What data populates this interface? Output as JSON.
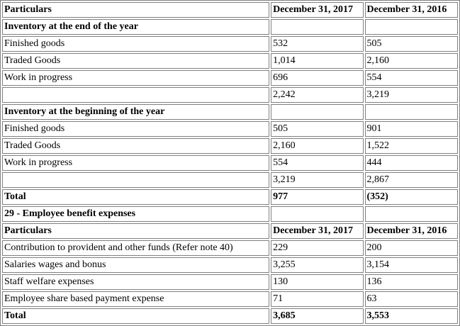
{
  "table": {
    "rows": [
      {
        "cells": [
          "Particulars",
          "December 31, 2017",
          "December 31, 2016"
        ],
        "bold": true
      },
      {
        "cells": [
          "Inventory at the end of the year",
          "",
          ""
        ],
        "bold": true
      },
      {
        "cells": [
          "Finished goods",
          "532",
          "505"
        ],
        "bold": false
      },
      {
        "cells": [
          "Traded Goods",
          "1,014",
          "2,160"
        ],
        "bold": false
      },
      {
        "cells": [
          "Work in progress",
          "696",
          "554"
        ],
        "bold": false
      },
      {
        "cells": [
          "",
          "2,242",
          "3,219"
        ],
        "bold": false
      },
      {
        "cells": [
          "Inventory at the beginning of the year",
          "",
          ""
        ],
        "bold": true
      },
      {
        "cells": [
          "Finished goods",
          "505",
          "901"
        ],
        "bold": false
      },
      {
        "cells": [
          "Traded Goods",
          "2,160",
          "1,522"
        ],
        "bold": false
      },
      {
        "cells": [
          "Work in progress",
          "554",
          "444"
        ],
        "bold": false
      },
      {
        "cells": [
          "",
          "3,219",
          "2,867"
        ],
        "bold": false
      },
      {
        "cells": [
          "Total",
          "977",
          "(352)"
        ],
        "bold": true
      },
      {
        "cells": [
          "29 - Employee benefit expenses",
          "",
          ""
        ],
        "bold": true
      },
      {
        "cells": [
          "Particulars",
          "December 31, 2017",
          "December 31, 2016"
        ],
        "bold": true
      },
      {
        "cells": [
          "Contribution to provident and other funds (Refer note 40)",
          "229",
          "200"
        ],
        "bold": false
      },
      {
        "cells": [
          "Salaries wages and bonus",
          "3,255",
          "3,154"
        ],
        "bold": false
      },
      {
        "cells": [
          "Staff welfare expenses",
          "130",
          "136"
        ],
        "bold": false
      },
      {
        "cells": [
          "Employee share based payment expense",
          "71",
          "63"
        ],
        "bold": false
      },
      {
        "cells": [
          "Total",
          "3,685",
          "3,553"
        ],
        "bold": true
      }
    ]
  }
}
